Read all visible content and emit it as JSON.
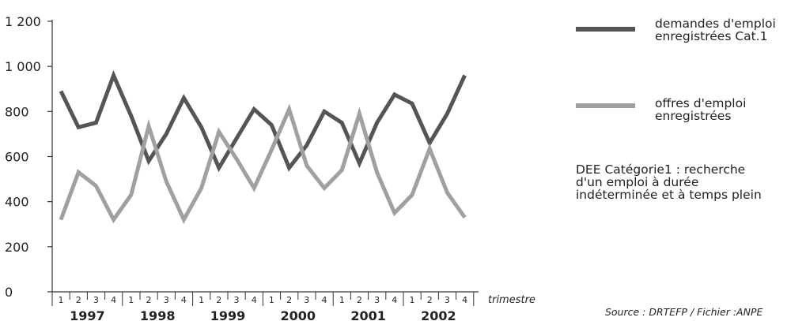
{
  "chart_data": {
    "type": "line",
    "y_ticks": [
      "0",
      "200",
      "400",
      "600",
      "800",
      "1 000",
      "1 200"
    ],
    "y_tick_values": [
      0,
      200,
      400,
      600,
      800,
      1000,
      1200
    ],
    "ylim": [
      0,
      1200
    ],
    "quarter_labels": [
      "1",
      "2",
      "3",
      "4",
      "1",
      "2",
      "3",
      "4",
      "1",
      "2",
      "3",
      "4",
      "1",
      "2",
      "3",
      "4",
      "1",
      "2",
      "3",
      "4",
      "1",
      "2",
      "3",
      "4"
    ],
    "year_labels": [
      "1997",
      "1998",
      "1999",
      "2000",
      "2001",
      "2002"
    ],
    "x_axis_label": "trimestre",
    "series": [
      {
        "name": "demandes d'emploi enregistrées Cat.1",
        "color": "#555555",
        "values": [
          890,
          730,
          750,
          960,
          780,
          580,
          700,
          860,
          730,
          550,
          680,
          810,
          740,
          550,
          650,
          800,
          750,
          570,
          750,
          875,
          835,
          660,
          790,
          960
        ]
      },
      {
        "name": "offres d'emploi enregistrées",
        "color": "#a0a0a0",
        "values": [
          320,
          530,
          470,
          320,
          430,
          735,
          490,
          320,
          460,
          710,
          590,
          460,
          630,
          810,
          560,
          460,
          540,
          790,
          530,
          350,
          430,
          635,
          440,
          330
        ]
      }
    ],
    "grid": false
  },
  "legend": {
    "demandes_label": "demandes d'emploi\nenregistrées Cat.1",
    "offres_label": "offres d'emploi\nenregistrées"
  },
  "note": "DEE Catégorie1 : recherche\nd'un emploi à durée\nindéterminée et à temps plein",
  "source": "Source : DRTEFP / Fichier :ANPE"
}
